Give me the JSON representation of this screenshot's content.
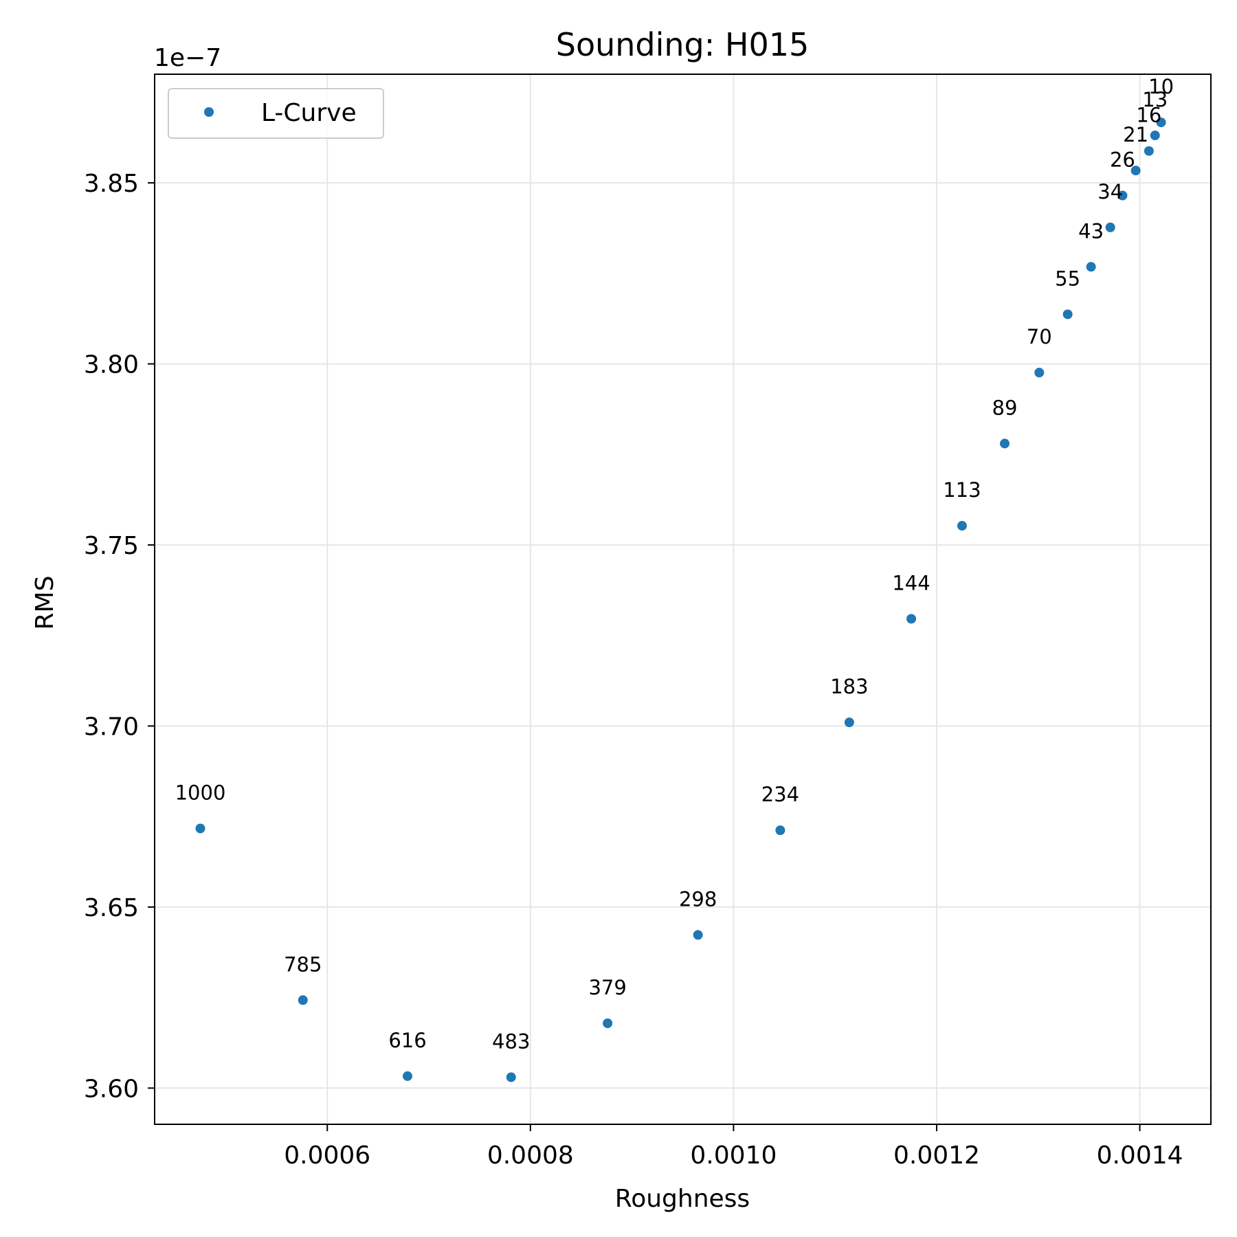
{
  "chart_data": {
    "type": "scatter",
    "title": "Sounding: H015",
    "xlabel": "Roughness",
    "ylabel": "RMS",
    "y_offset_label": "1e−7",
    "xlim": [
      0.00043,
      0.00147
    ],
    "ylim": [
      3.59,
      3.88
    ],
    "grid": true,
    "legend_position": "top-left",
    "x_ticks": [
      {
        "value": 0.0006,
        "label": "0.0006"
      },
      {
        "value": 0.0008,
        "label": "0.0008"
      },
      {
        "value": 0.001,
        "label": "0.0010"
      },
      {
        "value": 0.0012,
        "label": "0.0012"
      },
      {
        "value": 0.0014,
        "label": "0.0014"
      }
    ],
    "y_ticks": [
      {
        "value": 3.6,
        "label": "3.60"
      },
      {
        "value": 3.65,
        "label": "3.65"
      },
      {
        "value": 3.7,
        "label": "3.70"
      },
      {
        "value": 3.75,
        "label": "3.75"
      },
      {
        "value": 3.8,
        "label": "3.80"
      },
      {
        "value": 3.85,
        "label": "3.85"
      }
    ],
    "series": [
      {
        "name": "L-Curve",
        "color": "#1f77b4",
        "points": [
          {
            "x": 0.001421,
            "y": 3.8667,
            "label": "10"
          },
          {
            "x": 0.001415,
            "y": 3.8631,
            "label": "13"
          },
          {
            "x": 0.001409,
            "y": 3.8588,
            "label": "16"
          },
          {
            "x": 0.001396,
            "y": 3.8534,
            "label": "21"
          },
          {
            "x": 0.001383,
            "y": 3.8465,
            "label": "26"
          },
          {
            "x": 0.001371,
            "y": 3.8377,
            "label": "34"
          },
          {
            "x": 0.001352,
            "y": 3.8268,
            "label": "43"
          },
          {
            "x": 0.001329,
            "y": 3.8137,
            "label": "55"
          },
          {
            "x": 0.001301,
            "y": 3.7976,
            "label": "70"
          },
          {
            "x": 0.001267,
            "y": 3.778,
            "label": "89"
          },
          {
            "x": 0.001225,
            "y": 3.7553,
            "label": "113"
          },
          {
            "x": 0.001175,
            "y": 3.7296,
            "label": "144"
          },
          {
            "x": 0.001114,
            "y": 3.701,
            "label": "183"
          },
          {
            "x": 0.001046,
            "y": 3.6712,
            "label": "234"
          },
          {
            "x": 0.000965,
            "y": 3.6423,
            "label": "298"
          },
          {
            "x": 0.000876,
            "y": 3.6179,
            "label": "379"
          },
          {
            "x": 0.000781,
            "y": 3.603,
            "label": "483"
          },
          {
            "x": 0.000679,
            "y": 3.6033,
            "label": "616"
          },
          {
            "x": 0.000576,
            "y": 3.6243,
            "label": "785"
          },
          {
            "x": 0.000475,
            "y": 3.6717,
            "label": "1000"
          }
        ]
      }
    ]
  }
}
